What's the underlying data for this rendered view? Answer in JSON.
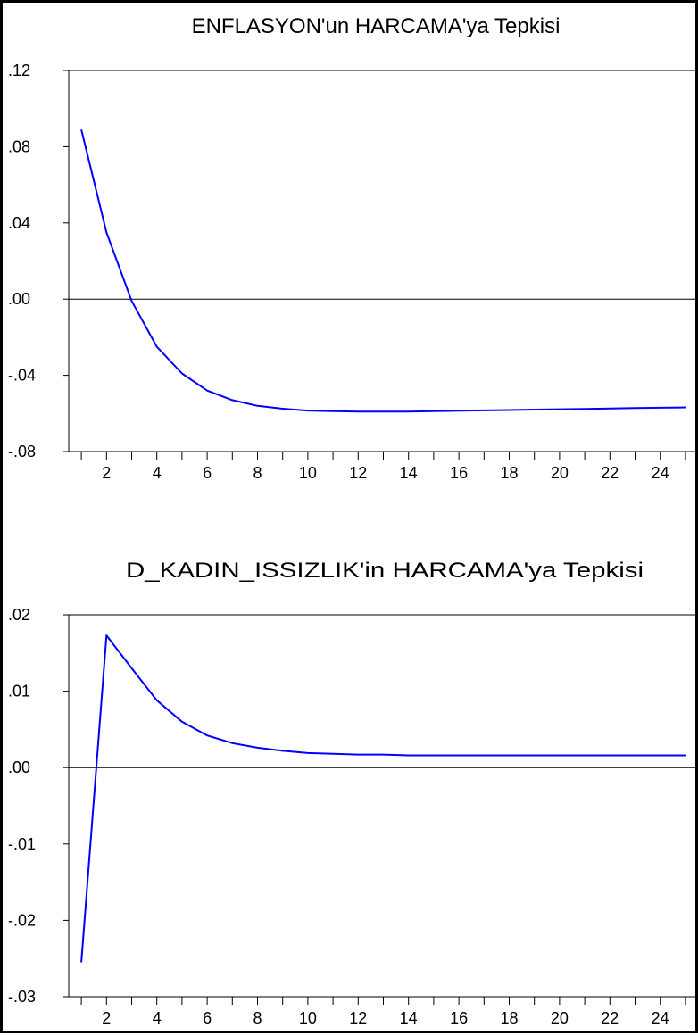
{
  "chart_data": [
    {
      "type": "line",
      "title": "ENFLASYON'un HARCAMA'ya Tepkisi",
      "xlabel": "",
      "ylabel": "",
      "x": [
        1,
        2,
        3,
        4,
        5,
        6,
        7,
        8,
        9,
        10,
        11,
        12,
        13,
        14,
        15,
        16,
        17,
        18,
        19,
        20,
        21,
        22,
        23,
        24,
        25
      ],
      "xlim": [
        0.5,
        25.5
      ],
      "xticks": [
        2,
        4,
        6,
        8,
        10,
        12,
        14,
        16,
        18,
        20,
        22,
        24
      ],
      "xtick_labels": [
        "2",
        "4",
        "6",
        "8",
        "10",
        "12",
        "14",
        "16",
        "18",
        "20",
        "22",
        "24"
      ],
      "ylim": [
        -0.08,
        0.12
      ],
      "yticks": [
        0.12,
        0.08,
        0.04,
        0.0,
        -0.04,
        -0.08
      ],
      "ytick_labels": [
        ".12",
        ".08",
        ".04",
        ".00",
        "-.04",
        "-.08"
      ],
      "zero_line": true,
      "grid": false,
      "line_color": "#0000ff",
      "series": [
        {
          "values": [
            0.089,
            0.035,
            -0.001,
            -0.025,
            -0.039,
            -0.048,
            -0.053,
            -0.056,
            -0.0575,
            -0.0585,
            -0.0588,
            -0.059,
            -0.059,
            -0.059,
            -0.0588,
            -0.0586,
            -0.0584,
            -0.0582,
            -0.058,
            -0.0578,
            -0.0576,
            -0.0574,
            -0.0572,
            -0.057,
            -0.0568
          ]
        }
      ]
    },
    {
      "type": "line",
      "title": "D_KADIN_ISSIZLIK'in HARCAMA'ya Tepkisi",
      "xlabel": "",
      "ylabel": "",
      "x": [
        1,
        2,
        3,
        4,
        5,
        6,
        7,
        8,
        9,
        10,
        11,
        12,
        13,
        14,
        15,
        16,
        17,
        18,
        19,
        20,
        21,
        22,
        23,
        24,
        25
      ],
      "xlim": [
        0.5,
        25.5
      ],
      "xticks": [
        2,
        4,
        6,
        8,
        10,
        12,
        14,
        16,
        18,
        20,
        22,
        24
      ],
      "xtick_labels": [
        "2",
        "4",
        "6",
        "8",
        "10",
        "12",
        "14",
        "16",
        "18",
        "20",
        "22",
        "24"
      ],
      "ylim": [
        -0.03,
        0.02
      ],
      "yticks": [
        0.02,
        0.01,
        0.0,
        -0.01,
        -0.02,
        -0.03
      ],
      "ytick_labels": [
        ".02",
        ".01",
        ".00",
        "-.01",
        "-.02",
        "-.03"
      ],
      "zero_line": true,
      "grid": false,
      "line_color": "#0000ff",
      "series": [
        {
          "values": [
            -0.0255,
            0.0173,
            0.013,
            0.0088,
            0.006,
            0.0042,
            0.0032,
            0.0026,
            0.0022,
            0.0019,
            0.0018,
            0.0017,
            0.0017,
            0.0016,
            0.0016,
            0.0016,
            0.0016,
            0.0016,
            0.0016,
            0.0016,
            0.0016,
            0.0016,
            0.0016,
            0.0016,
            0.0016
          ]
        }
      ]
    }
  ]
}
